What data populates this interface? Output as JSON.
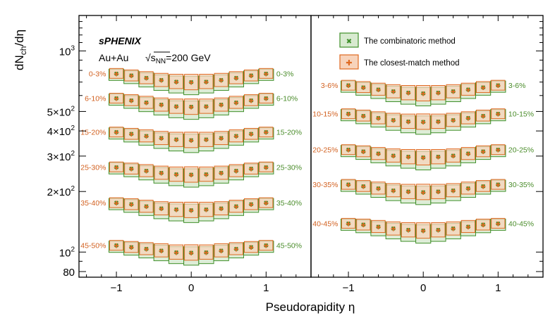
{
  "chart_data": {
    "type": "scatter",
    "xlabel": "Pseudorapidity η",
    "ylabel": "dN_ch/dη",
    "yscale": "log",
    "ylim": [
      75,
      1500
    ],
    "xlim": [
      -1.5,
      1.6
    ],
    "x_ticks": [
      "−1",
      "0",
      "1"
    ],
    "y_ticks": [
      {
        "value": 80,
        "label": "80"
      },
      {
        "value": 100,
        "label": "10",
        "exp": "2"
      },
      {
        "value": 200,
        "label": "2×10",
        "exp": "2"
      },
      {
        "value": 300,
        "label": "3×10",
        "exp": "2"
      },
      {
        "value": 400,
        "label": "4×10",
        "exp": "2"
      },
      {
        "value": 500,
        "label": "5×10",
        "exp": "2"
      },
      {
        "value": 1000,
        "label": "10",
        "exp": "3"
      }
    ],
    "experiment": "sPHENIX",
    "system": "Au+Au",
    "energy_prefix": "√s",
    "energy_sub": "NN",
    "energy_value": "=200 GeV",
    "colors": {
      "combinatoric": "#3f8f2a",
      "combinatoric_fill": "#d8ead0",
      "closest_match": "#df6a22",
      "closest_match_fill": "#f7d3bb",
      "centrality_left": "#d2601f",
      "centrality_right": "#4a8c2a"
    },
    "legend": {
      "combinatoric": "The combinatoric method",
      "closest_match": "The closest-match method"
    },
    "x": [
      -1.0,
      -0.8,
      -0.6,
      -0.4,
      -0.2,
      0.0,
      0.2,
      0.4,
      0.6,
      0.8,
      1.0
    ],
    "panels": [
      {
        "series": [
          {
            "centrality": "0-3%",
            "values": [
              773,
              755,
              736,
              717,
              705,
              700,
              705,
              717,
              736,
              755,
              773
            ]
          },
          {
            "centrality": "6-10%",
            "values": [
              582,
              569,
              555,
              541,
              531,
              528,
              531,
              541,
              555,
              569,
              582
            ]
          },
          {
            "centrality": "15-20%",
            "values": [
              395,
              387,
              378,
              369,
              363,
              361,
              363,
              369,
              378,
              387,
              395
            ]
          },
          {
            "centrality": "25-30%",
            "values": [
              265,
              260,
              254,
              248,
              244,
              243,
              244,
              248,
              254,
              260,
              265
            ]
          },
          {
            "centrality": "35-40%",
            "values": [
              176,
              173,
              169,
              165,
              163,
              162,
              163,
              165,
              169,
              173,
              176
            ]
          },
          {
            "centrality": "45-50%",
            "values": [
              108,
              106,
              104,
              102,
              100,
              99.5,
              100,
              102,
              104,
              106,
              108
            ]
          }
        ]
      },
      {
        "series": [
          {
            "centrality": "3-6%",
            "values": [
              675,
              661,
              645,
              630,
              620,
              616,
              620,
              630,
              645,
              661,
              675
            ]
          },
          {
            "centrality": "10-15%",
            "values": [
              487,
              477,
              465,
              454,
              447,
              445,
              447,
              454,
              465,
              477,
              487
            ]
          },
          {
            "centrality": "20-25%",
            "values": [
              323,
              317,
              309,
              302,
              298,
              296,
              298,
              302,
              309,
              317,
              323
            ]
          },
          {
            "centrality": "30-35%",
            "values": [
              217,
              213,
              208,
              203,
              200,
              199,
              200,
              203,
              208,
              213,
              217
            ]
          },
          {
            "centrality": "40-45%",
            "values": [
              139,
              137,
              134,
              131,
              129,
              128,
              129,
              131,
              134,
              137,
              139
            ]
          }
        ]
      }
    ]
  }
}
